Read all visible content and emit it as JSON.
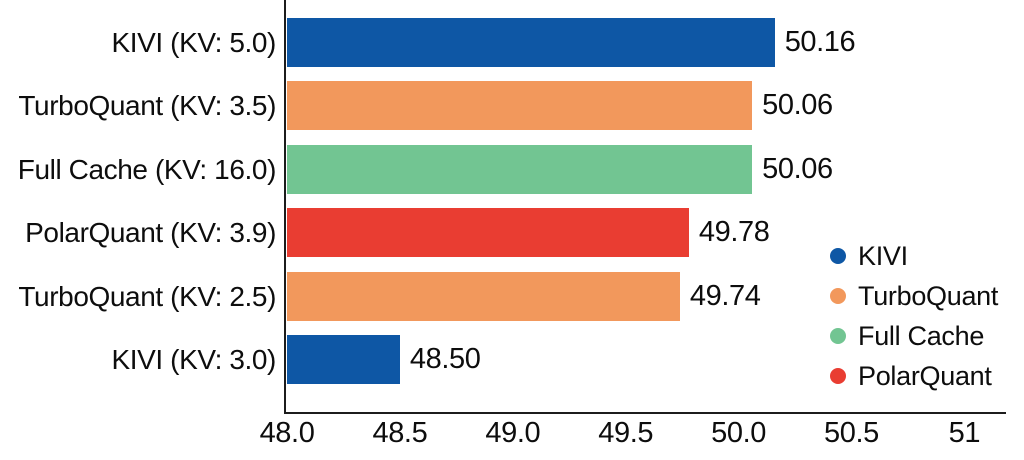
{
  "chart_data": {
    "type": "bar",
    "orientation": "horizontal",
    "title": "",
    "xlabel": "",
    "ylabel": "",
    "grid": false,
    "legend_position": "lower right",
    "xlim": [
      48.0,
      51.18
    ],
    "xticks": [
      "48.0",
      "48.5",
      "49.0",
      "49.5",
      "50.0",
      "50.5",
      "51"
    ],
    "xtick_values": [
      48.0,
      48.5,
      49.0,
      49.5,
      50.0,
      50.5,
      51.0
    ],
    "bars": [
      {
        "label": "KIVI (KV: 5.0)",
        "series": "KIVI",
        "value": 50.16,
        "value_label": "50.16"
      },
      {
        "label": "TurboQuant (KV: 3.5)",
        "series": "TurboQuant",
        "value": 50.06,
        "value_label": "50.06"
      },
      {
        "label": "Full Cache (KV: 16.0)",
        "series": "Full Cache",
        "value": 50.06,
        "value_label": "50.06"
      },
      {
        "label": "PolarQuant (KV: 3.9)",
        "series": "PolarQuant",
        "value": 49.78,
        "value_label": "49.78"
      },
      {
        "label": "TurboQuant (KV: 2.5)",
        "series": "TurboQuant",
        "value": 49.74,
        "value_label": "49.74"
      },
      {
        "label": "KIVI (KV: 3.0)",
        "series": "KIVI",
        "value": 48.5,
        "value_label": "48.50"
      }
    ],
    "series_colors": {
      "KIVI": "#0e57a5",
      "TurboQuant": "#f2985c",
      "Full Cache": "#72c592",
      "PolarQuant": "#e93d32"
    },
    "legend": [
      {
        "label": "KIVI",
        "color": "#0e57a5"
      },
      {
        "label": "TurboQuant",
        "color": "#f2985c"
      },
      {
        "label": "Full Cache",
        "color": "#72c592"
      },
      {
        "label": "PolarQuant",
        "color": "#e93d32"
      }
    ],
    "axis_color": "#1c1c1c"
  }
}
